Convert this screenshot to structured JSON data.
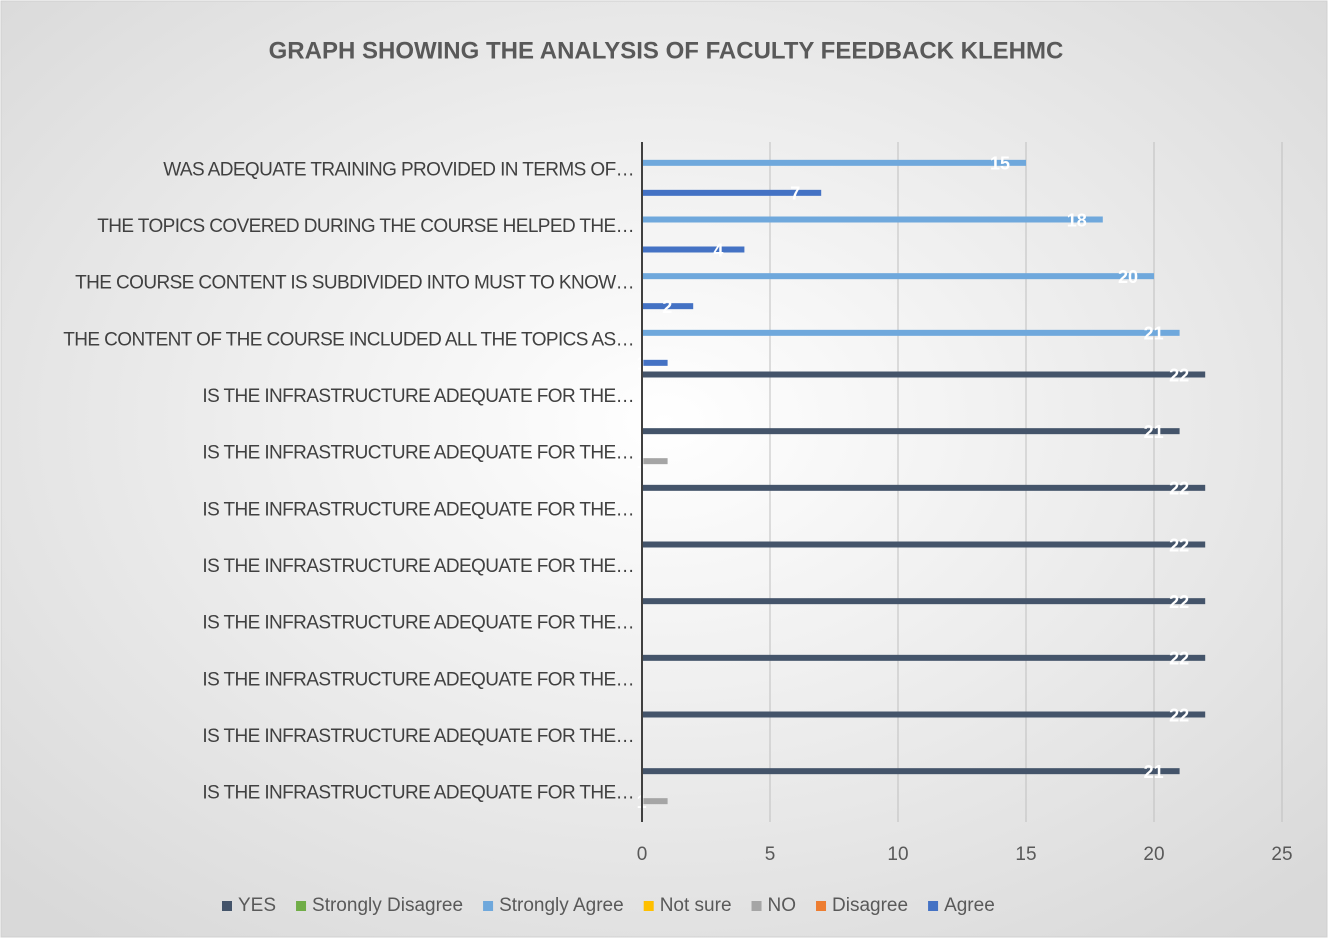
{
  "chart_data": {
    "type": "hbar",
    "title": "GRAPH SHOWING THE ANALYSIS OF FACULTY FEEDBACK KLEHMC",
    "categories": [
      "WAS ADEQUATE TRAINING PROVIDED IN TERMS OF…",
      "THE TOPICS COVERED DURING THE COURSE HELPED THE…",
      "THE COURSE CONTENT IS SUBDIVIDED INTO MUST TO KNOW…",
      "THE CONTENT OF THE COURSE INCLUDED ALL THE TOPICS AS…",
      "IS THE INFRASTRUCTURE ADEQUATE FOR THE…",
      "IS THE INFRASTRUCTURE ADEQUATE FOR THE…",
      "IS THE INFRASTRUCTURE ADEQUATE FOR THE…",
      "IS THE INFRASTRUCTURE ADEQUATE FOR THE…",
      "IS THE INFRASTRUCTURE ADEQUATE FOR THE…",
      "IS THE INFRASTRUCTURE ADEQUATE FOR THE…",
      "IS THE INFRASTRUCTURE ADEQUATE FOR THE…",
      "IS THE INFRASTRUCTURE ADEQUATE FOR THE…"
    ],
    "series": [
      {
        "name": "YES",
        "color": "#44546a",
        "values": [
          null,
          null,
          null,
          null,
          22,
          21,
          22,
          22,
          22,
          22,
          22,
          21
        ]
      },
      {
        "name": "Strongly Disagree",
        "color": "#70ad47",
        "values": [
          null,
          null,
          null,
          null,
          null,
          null,
          null,
          null,
          null,
          null,
          null,
          null
        ]
      },
      {
        "name": "Strongly Agree",
        "color": "#6fa8dc",
        "values": [
          15,
          18,
          20,
          21,
          null,
          null,
          null,
          null,
          null,
          null,
          null,
          null
        ]
      },
      {
        "name": "Not sure",
        "color": "#ffc000",
        "values": [
          null,
          null,
          null,
          null,
          null,
          null,
          null,
          null,
          null,
          null,
          null,
          null
        ]
      },
      {
        "name": "NO",
        "color": "#a5a5a5",
        "values": [
          null,
          null,
          null,
          null,
          null,
          1,
          null,
          null,
          null,
          null,
          null,
          1
        ]
      },
      {
        "name": "Disagree",
        "color": "#ed7d31",
        "values": [
          null,
          null,
          null,
          null,
          null,
          null,
          null,
          null,
          null,
          null,
          null,
          null
        ]
      },
      {
        "name": "Agree",
        "color": "#4472c4",
        "values": [
          7,
          4,
          2,
          1,
          null,
          null,
          null,
          null,
          null,
          null,
          null,
          null
        ]
      }
    ],
    "xlim": [
      0,
      25
    ],
    "xticks": [
      0,
      5,
      10,
      15,
      20,
      25
    ],
    "grid": true,
    "legend": "bottom"
  }
}
